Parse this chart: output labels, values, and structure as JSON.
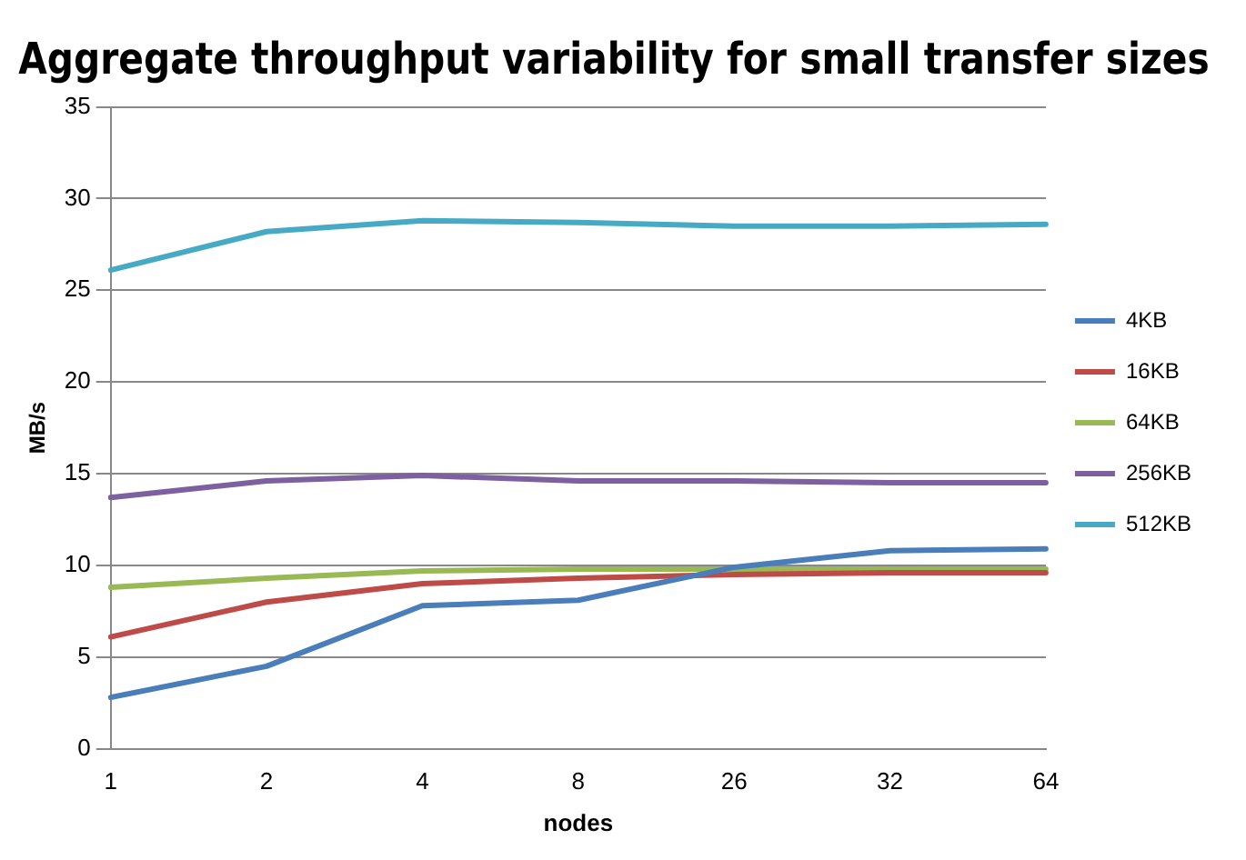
{
  "chart_data": {
    "type": "line",
    "title": "Aggregate throughput variability for small transfer sizes",
    "xlabel": "nodes",
    "ylabel": "MB/s",
    "categories": [
      "1",
      "2",
      "4",
      "8",
      "26",
      "32",
      "64"
    ],
    "series": [
      {
        "name": "4KB",
        "color": "#4a7ebb",
        "values": [
          2.8,
          4.5,
          7.8,
          8.1,
          9.9,
          10.8,
          10.9
        ]
      },
      {
        "name": "16KB",
        "color": "#be4b48",
        "values": [
          6.1,
          8.0,
          9.0,
          9.3,
          9.5,
          9.6,
          9.6
        ]
      },
      {
        "name": "64KB",
        "color": "#98b954",
        "values": [
          8.8,
          9.3,
          9.7,
          9.8,
          9.8,
          9.8,
          9.8
        ]
      },
      {
        "name": "256KB",
        "color": "#7d60a0",
        "values": [
          13.7,
          14.6,
          14.9,
          14.6,
          14.6,
          14.5,
          14.5
        ]
      },
      {
        "name": "512KB",
        "color": "#46aac5",
        "values": [
          26.1,
          28.2,
          28.8,
          28.7,
          28.5,
          28.5,
          28.6
        ]
      }
    ],
    "ylim": [
      0,
      35
    ],
    "yticks": [
      0,
      5,
      10,
      15,
      20,
      25,
      30,
      35
    ],
    "grid": "y",
    "legend": "right",
    "marker": "none",
    "line_style": "solid"
  }
}
